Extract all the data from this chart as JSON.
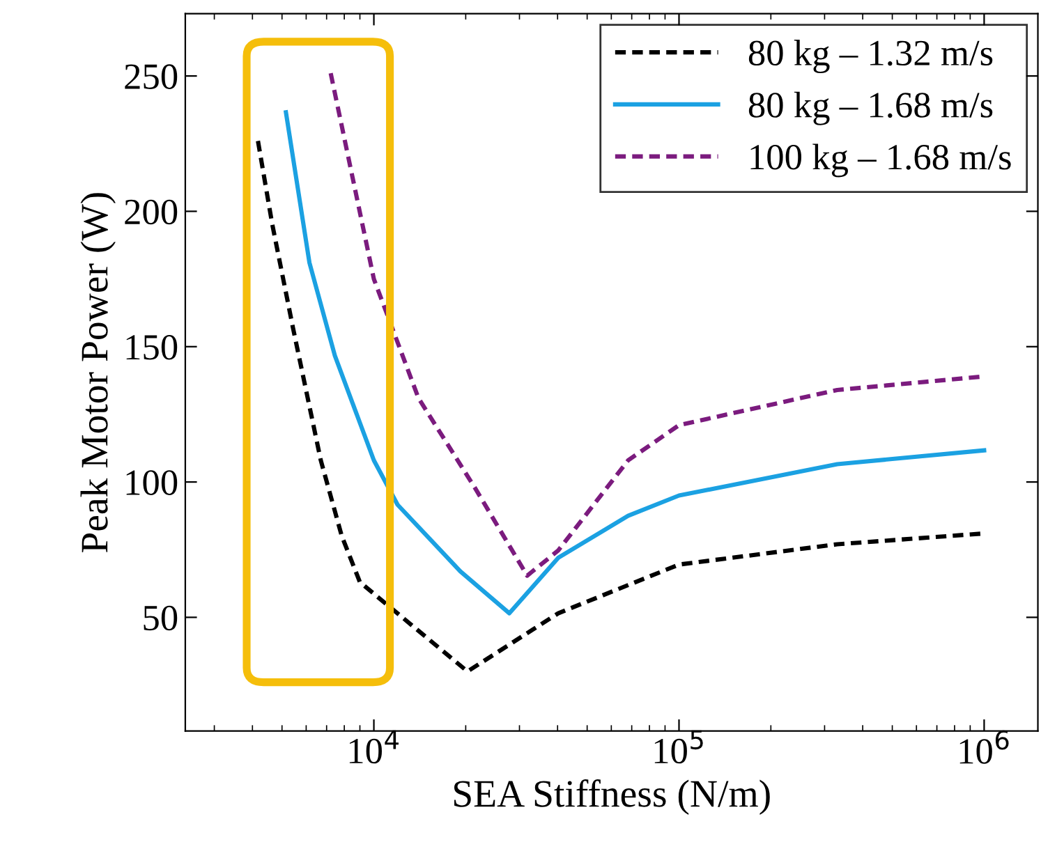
{
  "chart_data": {
    "type": "line",
    "xlabel": "SEA Stiffness (N/m)",
    "ylabel": "Peak Motor Power (W)",
    "log": "x",
    "xlim": [
      2410,
      1500000
    ],
    "ylim": [
      8,
      273
    ],
    "xticks": [
      {
        "value": 10000,
        "label": "10$^{4}$"
      },
      {
        "value": 100000,
        "label": "10$^{5}$"
      },
      {
        "value": 1000000,
        "label": "10$^{6}$"
      }
    ],
    "yticks": [
      50,
      100,
      150,
      200,
      250
    ],
    "grid": false,
    "legend": "top right",
    "series": [
      {
        "name": "80 kg – 1.32 m/s",
        "color": "#000000",
        "line_style": "dashed",
        "x": [
          4170,
          4640,
          5430,
          6700,
          7850,
          9000,
          20270,
          40200,
          100000,
          330000,
          1000000
        ],
        "values": [
          226,
          195.5,
          157,
          108,
          80,
          63,
          30,
          51.5,
          69.5,
          77,
          81
        ]
      },
      {
        "name": "80 kg – 1.68 m/s",
        "color": "#1ba1e2",
        "line_style": "solid",
        "x": [
          5150,
          6150,
          7450,
          10000,
          11960,
          19200,
          27800,
          40200,
          68100,
          100000,
          330000,
          1000000
        ],
        "values": [
          236.6,
          181,
          146.7,
          108,
          91.6,
          67,
          51.5,
          72,
          87.5,
          95,
          106.6,
          111.7
        ]
      },
      {
        "name": "100 kg – 1.68 m/s",
        "color": "#7b1b7e",
        "line_style": "dashed",
        "x": [
          7220,
          10000,
          14000,
          21400,
          31800,
          40200,
          68100,
          100000,
          330000,
          1000000
        ],
        "values": [
          251,
          175,
          131,
          98,
          65.4,
          74.7,
          108,
          121,
          134,
          139
        ]
      }
    ]
  }
}
